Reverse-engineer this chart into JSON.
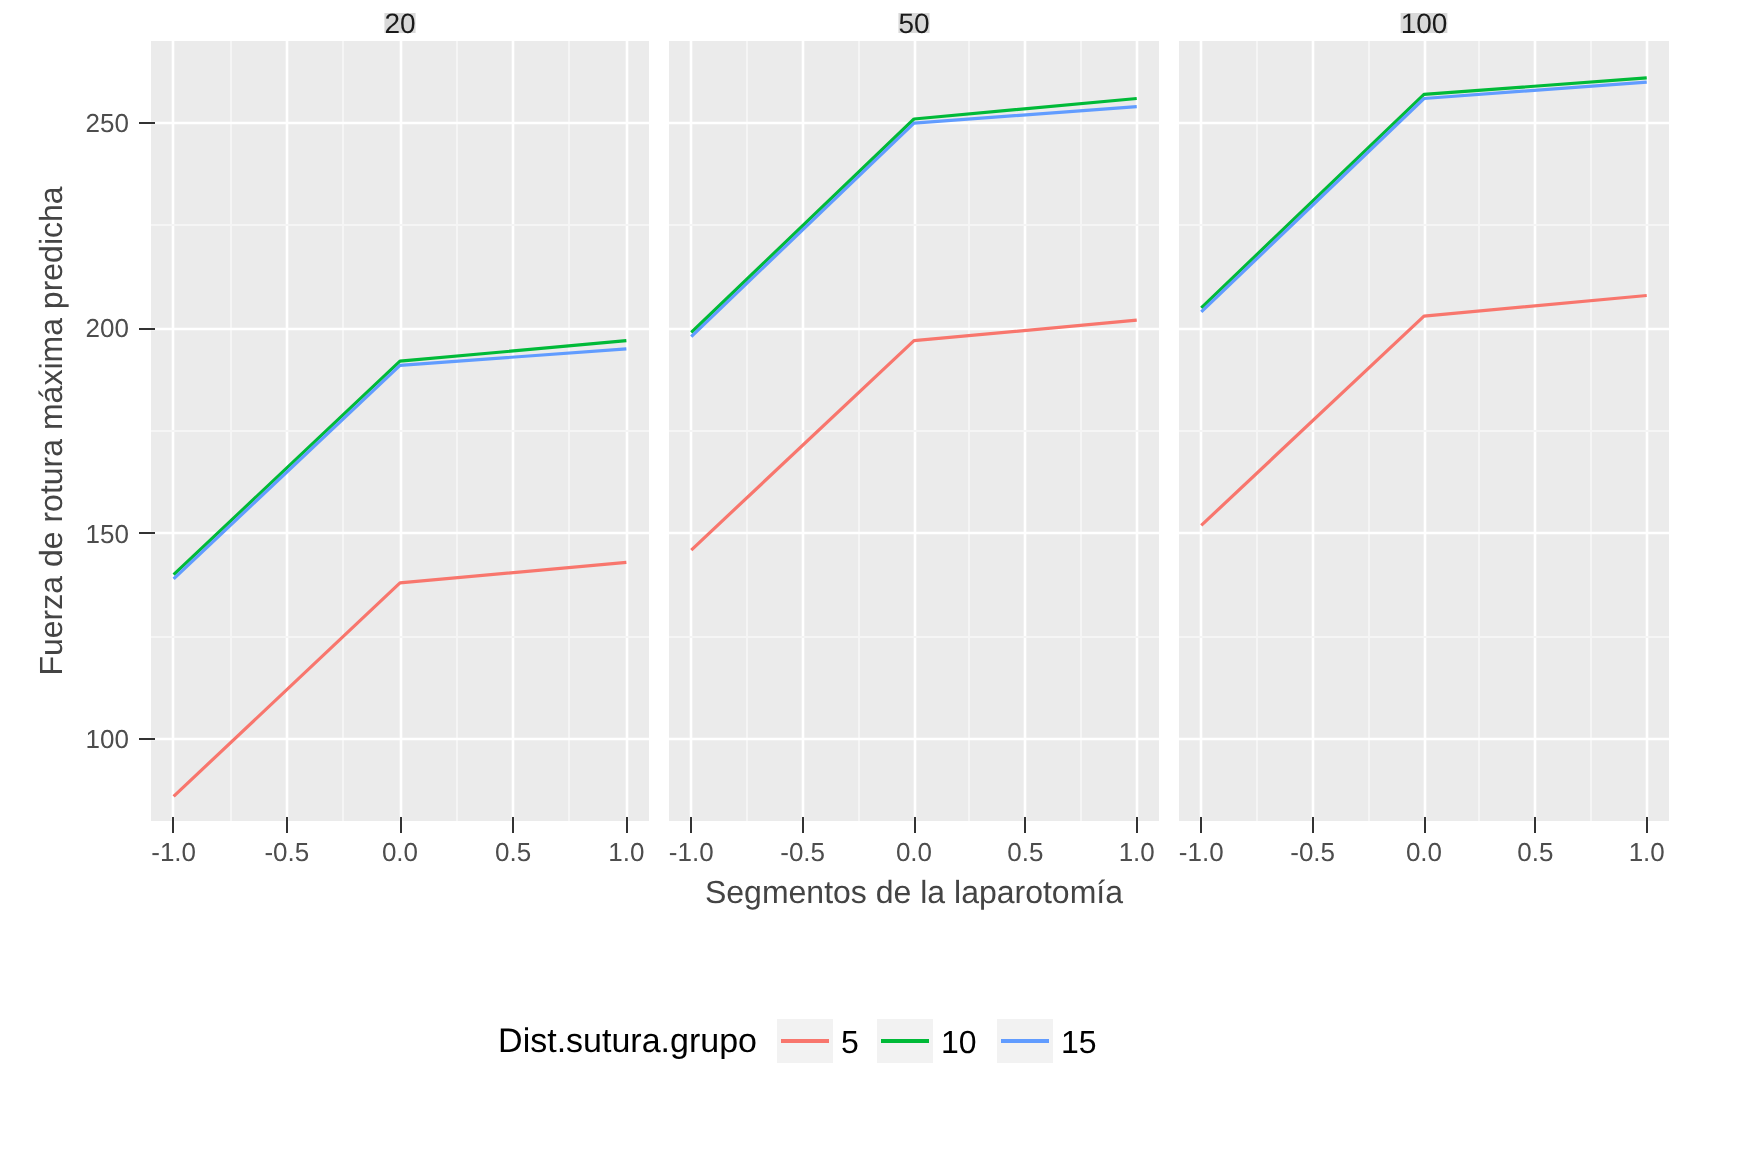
{
  "chart_data": [
    {
      "type": "line",
      "title": "20",
      "ylabel": "Fuerza de rotura máxima predicha",
      "legend_title": "Dist.sutura.grupo",
      "legend": "bottom",
      "grid": true,
      "x": [
        -1,
        0,
        1
      ],
      "xlim": [
        -1.1,
        1.1
      ],
      "ylim": [
        80,
        270
      ],
      "xticks": [
        {
          "value": -1,
          "label": "-1.0"
        },
        {
          "value": -0.5,
          "label": "-0.5"
        },
        {
          "value": 0,
          "label": "0.0"
        },
        {
          "value": 0.5,
          "label": "0.5"
        },
        {
          "value": 1,
          "label": "1.0"
        }
      ],
      "yticks": [
        100,
        150,
        200,
        250
      ],
      "series": [
        {
          "name": "5",
          "color": "#f8766d",
          "values": [
            86,
            138,
            143
          ]
        },
        {
          "name": "10",
          "color": "#00ba38",
          "values": [
            140,
            192,
            197
          ]
        },
        {
          "name": "15",
          "color": "#619cff",
          "values": [
            139,
            191,
            195
          ]
        }
      ]
    },
    {
      "type": "line",
      "title": "50",
      "xlabel": "Segmentos de la laparotomía",
      "tick_labels": "x",
      "grid": true,
      "x": [
        -1,
        0,
        1
      ],
      "xlim": [
        -1.1,
        1.1
      ],
      "ylim": [
        80,
        270
      ],
      "xticks": [
        {
          "value": -1,
          "label": "-1.0"
        },
        {
          "value": -0.5,
          "label": "-0.5"
        },
        {
          "value": 0,
          "label": "0.0"
        },
        {
          "value": 0.5,
          "label": "0.5"
        },
        {
          "value": 1,
          "label": "1.0"
        }
      ],
      "yticks": [
        100,
        150,
        200,
        250
      ],
      "series": [
        {
          "color": "#f8766d",
          "values": [
            146,
            197,
            202
          ]
        },
        {
          "color": "#00ba38",
          "values": [
            199,
            251,
            256
          ]
        },
        {
          "color": "#619cff",
          "values": [
            198,
            250,
            254
          ]
        }
      ]
    },
    {
      "type": "line",
      "title": "100",
      "tick_labels": "x",
      "grid": true,
      "x": [
        -1,
        0,
        1
      ],
      "xlim": [
        -1.1,
        1.1
      ],
      "ylim": [
        80,
        270
      ],
      "xticks": [
        {
          "value": -1,
          "label": "-1.0"
        },
        {
          "value": -0.5,
          "label": "-0.5"
        },
        {
          "value": 0,
          "label": "0.0"
        },
        {
          "value": 0.5,
          "label": "0.5"
        },
        {
          "value": 1,
          "label": "1.0"
        }
      ],
      "yticks": [
        100,
        150,
        200,
        250
      ],
      "series": [
        {
          "color": "#f8766d",
          "values": [
            152,
            203,
            208
          ]
        },
        {
          "color": "#00ba38",
          "values": [
            205,
            257,
            261
          ]
        },
        {
          "color": "#619cff",
          "values": [
            204,
            256,
            260
          ]
        }
      ]
    }
  ]
}
